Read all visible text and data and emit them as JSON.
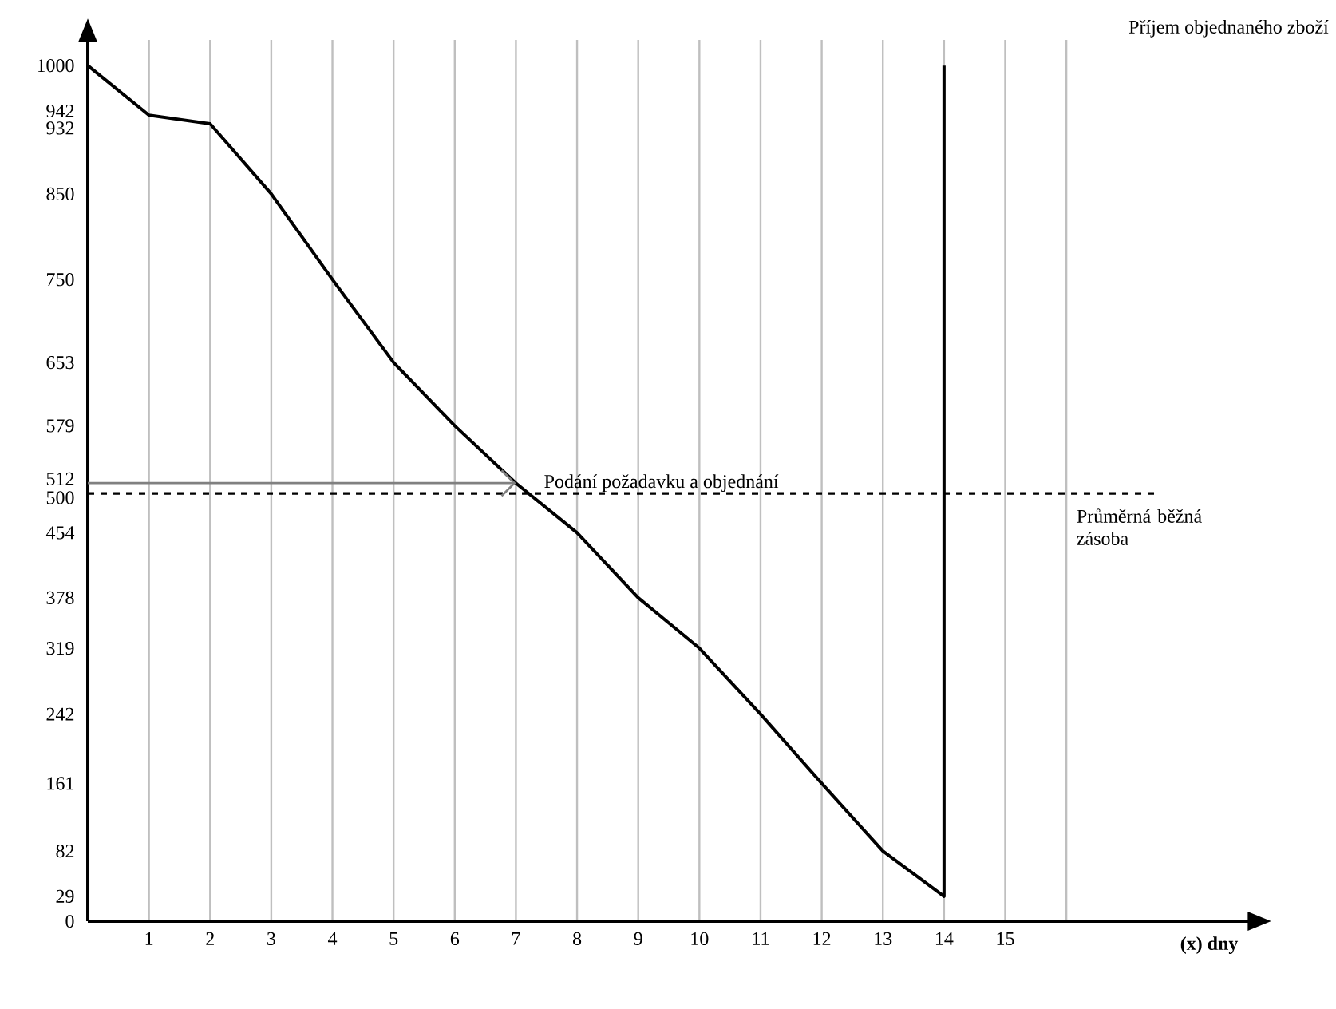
{
  "chart_data": {
    "type": "line",
    "xlabel": "**(x) dny**",
    "x": [
      0,
      1,
      2,
      3,
      4,
      5,
      6,
      7,
      8,
      9,
      10,
      11,
      12,
      13,
      14,
      14
    ],
    "series": [
      {
        "color": "#000000",
        "values": [
          1000,
          942,
          932,
          850,
          750,
          653,
          579,
          512,
          454,
          378,
          319,
          242,
          161,
          82,
          29,
          1000
        ]
      }
    ],
    "xlim": [
      0,
      19
    ],
    "ylim": [
      0,
      1030
    ],
    "xticks": [
      1,
      2,
      3,
      4,
      5,
      6,
      7,
      8,
      9,
      10,
      11,
      12,
      13,
      14,
      15,
      {
        "value": 16,
        "label": null
      }
    ],
    "yticks": [
      0,
      29,
      82,
      161,
      242,
      319,
      378,
      454,
      500,
      512,
      579,
      653,
      750,
      850,
      932,
      942,
      1000
    ],
    "grid": "x",
    "marker": "none",
    "line_style": "solid",
    "ref_lines": [
      {
        "axis": "y",
        "value": 500,
        "label": "Průměrná běžná zásoba",
        "line_style": "dashed",
        "color": "#000000"
      }
    ],
    "annotations": [
      "Příjem objednaného zboží",
      {
        "text": "Podání požadavku a objednání",
        "x": 7,
        "y": 512
      }
    ]
  }
}
